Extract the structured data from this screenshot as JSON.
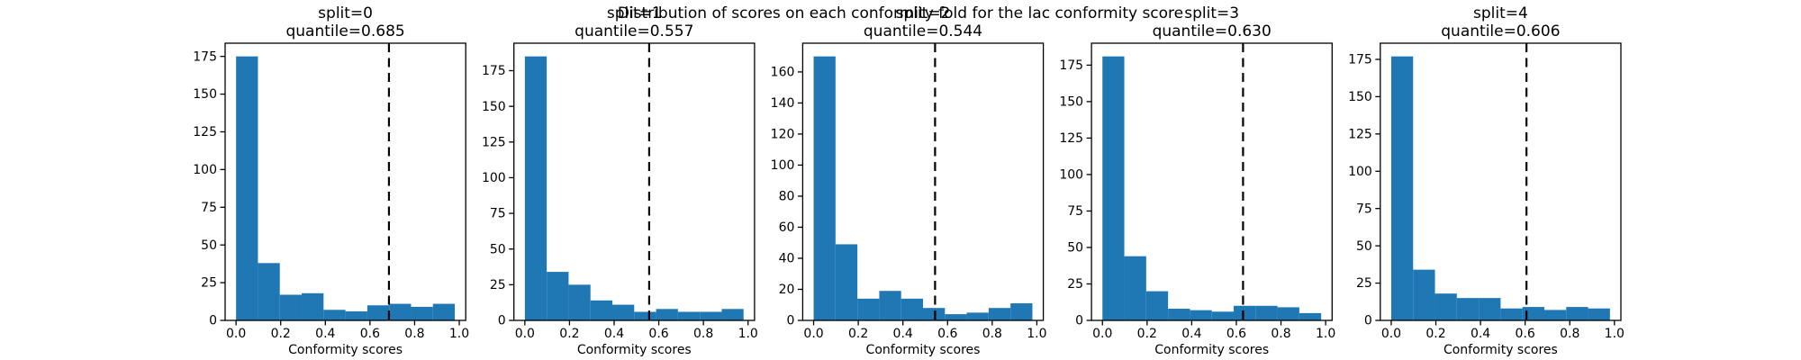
{
  "figure": {
    "suptitle": "Distribution of scores on each conformity fold for the lac conformity score",
    "background_color": "#ffffff",
    "bar_color": "#1f77b4",
    "line_color": "#000000",
    "text_color": "#000000"
  },
  "chart_data": [
    {
      "type": "histogram",
      "title_line1": "split=0",
      "title_line2": "quantile=0.685",
      "xlabel": "Conformity scores",
      "quantile_value": 0.685,
      "quantile_line_style": "dashed",
      "bin_start": 0.0,
      "bin_end": 0.98,
      "counts": [
        175,
        38,
        17,
        18,
        7,
        6,
        10,
        11,
        9,
        11
      ],
      "yticks": [
        0,
        25,
        50,
        75,
        100,
        125,
        150,
        175
      ],
      "xticks": [
        0.0,
        0.2,
        0.4,
        0.6,
        0.8,
        1.0
      ],
      "xtick_labels": [
        "0.0",
        "0.2",
        "0.4",
        "0.6",
        "0.8",
        "1.0"
      ]
    },
    {
      "type": "histogram",
      "title_line1": "split=1",
      "title_line2": "quantile=0.557",
      "xlabel": "Conformity scores",
      "quantile_value": 0.557,
      "quantile_line_style": "dashed",
      "bin_start": 0.0,
      "bin_end": 0.98,
      "counts": [
        185,
        34,
        25,
        14,
        11,
        6,
        8,
        6,
        6,
        8
      ],
      "yticks": [
        0,
        25,
        50,
        75,
        100,
        125,
        150,
        175
      ],
      "xticks": [
        0.0,
        0.2,
        0.4,
        0.6,
        0.8,
        1.0
      ],
      "xtick_labels": [
        "0.0",
        "0.2",
        "0.4",
        "0.6",
        "0.8",
        "1.0"
      ]
    },
    {
      "type": "histogram",
      "title_line1": "split=2",
      "title_line2": "quantile=0.544",
      "xlabel": "Conformity scores",
      "quantile_value": 0.544,
      "quantile_line_style": "dashed",
      "bin_start": 0.0,
      "bin_end": 0.98,
      "counts": [
        170,
        49,
        14,
        19,
        14,
        8,
        4,
        5,
        8,
        11
      ],
      "yticks": [
        0,
        20,
        40,
        60,
        80,
        100,
        120,
        140,
        160
      ],
      "xticks": [
        0.0,
        0.2,
        0.4,
        0.6,
        0.8,
        1.0
      ],
      "xtick_labels": [
        "0.0",
        "0.2",
        "0.4",
        "0.6",
        "0.8",
        "1.0"
      ]
    },
    {
      "type": "histogram",
      "title_line1": "split=3",
      "title_line2": "quantile=0.630",
      "xlabel": "Conformity scores",
      "quantile_value": 0.63,
      "quantile_line_style": "dashed",
      "bin_start": 0.0,
      "bin_end": 0.98,
      "counts": [
        181,
        44,
        20,
        8,
        7,
        6,
        10,
        10,
        9,
        5
      ],
      "yticks": [
        0,
        25,
        50,
        75,
        100,
        125,
        150,
        175
      ],
      "xticks": [
        0.0,
        0.2,
        0.4,
        0.6,
        0.8,
        1.0
      ],
      "xtick_labels": [
        "0.0",
        "0.2",
        "0.4",
        "0.6",
        "0.8",
        "1.0"
      ]
    },
    {
      "type": "histogram",
      "title_line1": "split=4",
      "title_line2": "quantile=0.606",
      "xlabel": "Conformity scores",
      "quantile_value": 0.606,
      "quantile_line_style": "dashed",
      "bin_start": 0.0,
      "bin_end": 0.98,
      "counts": [
        177,
        34,
        18,
        15,
        15,
        8,
        9,
        7,
        9,
        8
      ],
      "yticks": [
        0,
        25,
        50,
        75,
        100,
        125,
        150,
        175
      ],
      "xticks": [
        0.0,
        0.2,
        0.4,
        0.6,
        0.8,
        1.0
      ],
      "xtick_labels": [
        "0.0",
        "0.2",
        "0.4",
        "0.6",
        "0.8",
        "1.0"
      ]
    }
  ]
}
